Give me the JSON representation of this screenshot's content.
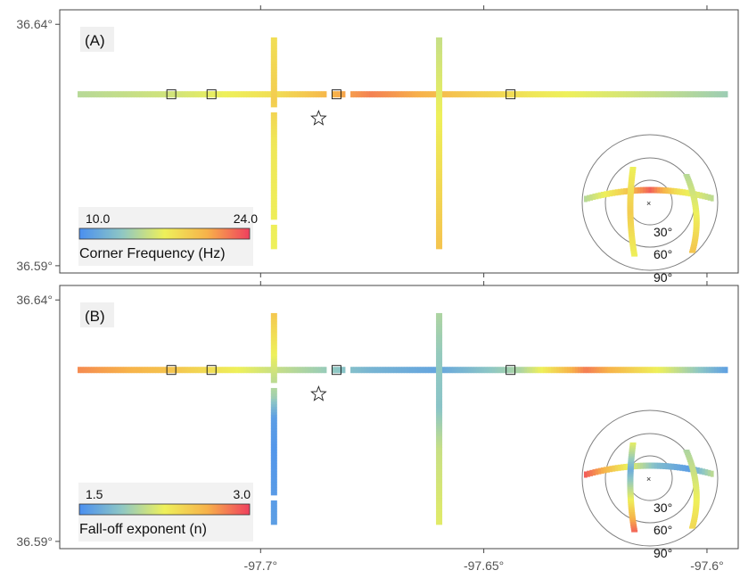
{
  "colors": {
    "scale": [
      "#4a8ff0",
      "#8ec7c4",
      "#eef05a",
      "#f7b24a",
      "#f0405e"
    ],
    "frame": "#444444",
    "star": "#222222",
    "station_edge": "#111111"
  },
  "axes": {
    "x_ticks": [
      {
        "value": -97.7,
        "label": "-97.7°"
      },
      {
        "value": -97.65,
        "label": "-97.65°"
      },
      {
        "value": -97.6,
        "label": "-97.6°"
      }
    ],
    "y_ticks": [
      {
        "value": 36.64,
        "label": "36.64°"
      },
      {
        "value": 36.59,
        "label": "36.59°"
      }
    ],
    "xlim": [
      -97.745,
      -97.593
    ],
    "ylim": [
      36.5885,
      36.643
    ]
  },
  "chart_data": [
    {
      "type": "scatter",
      "panel_label": "(A)",
      "colorbar": {
        "min_label": "10.0",
        "max_label": "24.0",
        "title": "Corner Frequency (Hz)",
        "min": 10.0,
        "max": 24.0
      },
      "event_star": {
        "lon": -97.687,
        "lat": 36.6205
      },
      "stations": [
        {
          "lon": -97.72,
          "lat": 36.6255
        },
        {
          "lon": -97.711,
          "lat": 36.6255
        },
        {
          "lon": -97.683,
          "lat": 36.6255
        },
        {
          "lon": -97.644,
          "lat": 36.6255
        }
      ],
      "lines": [
        {
          "orientation": "ew",
          "lat": 36.6255,
          "lon_start": -97.741,
          "lon_end": -97.5955,
          "gaps": [
            [
              -97.6855,
              -97.6845
            ],
            [
              -97.6815,
              -97.6805
            ]
          ],
          "profile": [
            [
              0,
              15
            ],
            [
              0.15,
              16
            ],
            [
              0.3,
              18
            ],
            [
              0.45,
              22
            ],
            [
              0.55,
              20
            ],
            [
              0.7,
              17.5
            ],
            [
              0.85,
              16
            ],
            [
              1,
              14
            ]
          ]
        },
        {
          "orientation": "ns",
          "lon": -97.697,
          "lat_start": 36.5935,
          "lat_end": 36.6375,
          "gaps": [
            [
              36.5985,
              36.5995
            ],
            [
              36.6215,
              36.6225
            ]
          ],
          "profile": [
            [
              0,
              17
            ],
            [
              0.5,
              17.5
            ],
            [
              0.7,
              19
            ],
            [
              1,
              18
            ]
          ]
        },
        {
          "orientation": "ns",
          "lon": -97.66,
          "lat_start": 36.5935,
          "lat_end": 36.6375,
          "gaps": [],
          "profile": [
            [
              0,
              19.5
            ],
            [
              0.5,
              17.5
            ],
            [
              1,
              15.5
            ]
          ]
        }
      ],
      "polar": {
        "ring_labels": [
          "30°",
          "60°",
          "90°"
        ],
        "arcs": [
          {
            "orientation": "ew",
            "profile": [
              [
                0,
                15
              ],
              [
                0.3,
                19
              ],
              [
                0.5,
                23
              ],
              [
                0.7,
                18
              ],
              [
                1,
                15
              ]
            ]
          },
          {
            "orientation": "ns",
            "profile": [
              [
                0,
                17
              ],
              [
                0.5,
                19
              ],
              [
                1,
                17
              ]
            ]
          },
          {
            "orientation": "ns",
            "profile": [
              [
                0,
                15
              ],
              [
                0.5,
                17
              ],
              [
                1,
                19.5
              ]
            ]
          }
        ]
      }
    },
    {
      "type": "scatter",
      "panel_label": "(B)",
      "colorbar": {
        "min_label": "1.5",
        "max_label": "3.0",
        "title": "Fall-off exponent (n)",
        "min": 1.5,
        "max": 3.0
      },
      "event_star": {
        "lon": -97.687,
        "lat": 36.6205
      },
      "stations": [
        {
          "lon": -97.72,
          "lat": 36.6255
        },
        {
          "lon": -97.711,
          "lat": 36.6255
        },
        {
          "lon": -97.683,
          "lat": 36.6255
        },
        {
          "lon": -97.644,
          "lat": 36.6255
        }
      ],
      "lines": [
        {
          "orientation": "ew",
          "lat": 36.6255,
          "lon_start": -97.741,
          "lon_end": -97.5955,
          "gaps": [
            [
              -97.6855,
              -97.6845
            ],
            [
              -97.6815,
              -97.6805
            ]
          ],
          "profile": [
            [
              0,
              2.75
            ],
            [
              0.15,
              2.5
            ],
            [
              0.3,
              2.1
            ],
            [
              0.45,
              1.75
            ],
            [
              0.55,
              1.65
            ],
            [
              0.68,
              2.0
            ],
            [
              0.78,
              2.8
            ],
            [
              0.9,
              2.2
            ],
            [
              1,
              1.6
            ]
          ]
        },
        {
          "orientation": "ns",
          "lon": -97.697,
          "lat_start": 36.5935,
          "lat_end": 36.6375,
          "gaps": [
            [
              36.5985,
              36.5995
            ],
            [
              36.6215,
              36.6225
            ]
          ],
          "profile": [
            [
              0,
              1.6
            ],
            [
              0.35,
              1.55
            ],
            [
              0.5,
              1.6
            ],
            [
              0.6,
              1.95
            ],
            [
              0.8,
              2.25
            ],
            [
              1,
              2.5
            ]
          ]
        },
        {
          "orientation": "ns",
          "lon": -97.66,
          "lat_start": 36.5935,
          "lat_end": 36.6375,
          "gaps": [],
          "profile": [
            [
              0,
              2.2
            ],
            [
              0.35,
              2.1
            ],
            [
              0.55,
              1.85
            ],
            [
              0.8,
              1.9
            ],
            [
              1,
              2.0
            ]
          ]
        }
      ],
      "polar": {
        "ring_labels": [
          "30°",
          "60°",
          "90°"
        ],
        "arcs": [
          {
            "orientation": "ew",
            "profile": [
              [
                0,
                2.9
              ],
              [
                0.3,
                2.3
              ],
              [
                0.55,
                1.8
              ],
              [
                0.8,
                1.6
              ],
              [
                1,
                2.1
              ]
            ]
          },
          {
            "orientation": "ns",
            "profile": [
              [
                0,
                2.2
              ],
              [
                0.3,
                1.7
              ],
              [
                0.6,
                2.2
              ],
              [
                1,
                2.9
              ]
            ]
          },
          {
            "orientation": "ns",
            "profile": [
              [
                0,
                2.0
              ],
              [
                0.5,
                2.2
              ],
              [
                1,
                2.4
              ]
            ]
          }
        ]
      }
    }
  ]
}
